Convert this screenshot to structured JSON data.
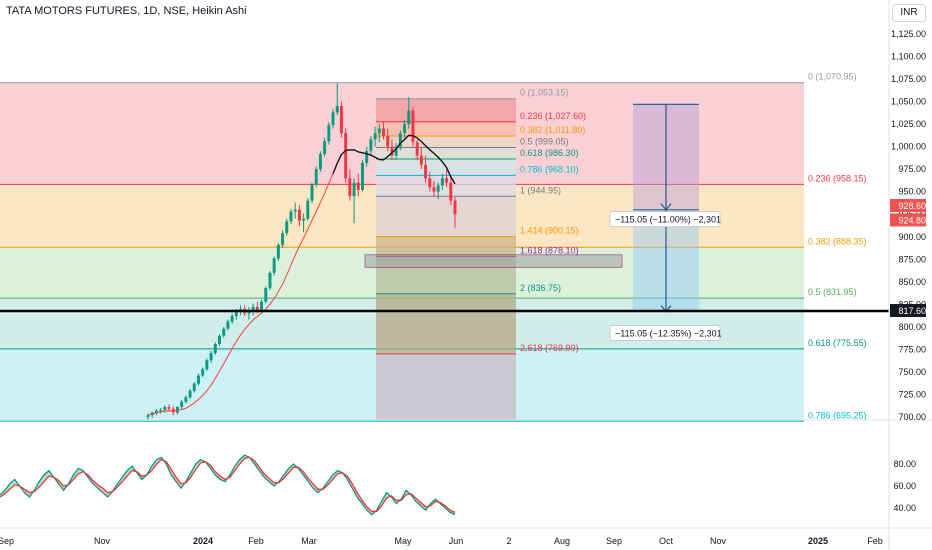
{
  "header": {
    "symbol_line": "TATA MOTORS FUTURES, 1D, NSE, Heikin Ashi",
    "currency": "INR"
  },
  "chart_data": [
    {
      "type": "candlestick",
      "title": "TATA MOTORS FUTURES, 1D, NSE, Heikin Ashi",
      "ylim": [
        695,
        1140
      ],
      "y_ticks": [
        "1,125.00",
        "1,100.00",
        "1,075.00",
        "1,050.00",
        "1,025.00",
        "1,000.00",
        "975.00",
        "950.00",
        "925.00",
        "900.00",
        "875.00",
        "850.00",
        "825.00",
        "800.00",
        "775.00",
        "750.00",
        "725.00",
        "700.00"
      ],
      "x_ticks": [
        "Sep",
        "Nov",
        "2024",
        "Feb",
        "Mar",
        "May",
        "Jun",
        "2",
        "Aug",
        "Sep",
        "Oct",
        "Nov",
        "2025",
        "Feb"
      ],
      "price_labels": [
        {
          "text": "928.60",
          "value": 928.6,
          "color": "#ef5350"
        },
        {
          "text": "924.80",
          "value": 924.8,
          "color": "#ef5350"
        },
        {
          "text": "817.60",
          "value": 817.6,
          "color": "#131722"
        }
      ],
      "candles": [
        {
          "o": 700,
          "h": 704,
          "l": 697,
          "c": 702
        },
        {
          "o": 702,
          "h": 706,
          "l": 699,
          "c": 705
        },
        {
          "o": 705,
          "h": 709,
          "l": 702,
          "c": 707
        },
        {
          "o": 707,
          "h": 710,
          "l": 704,
          "c": 708
        },
        {
          "o": 708,
          "h": 713,
          "l": 705,
          "c": 711
        },
        {
          "o": 711,
          "h": 714,
          "l": 706,
          "c": 709
        },
        {
          "o": 709,
          "h": 712,
          "l": 702,
          "c": 705
        },
        {
          "o": 705,
          "h": 712,
          "l": 703,
          "c": 711
        },
        {
          "o": 711,
          "h": 719,
          "l": 709,
          "c": 717
        },
        {
          "o": 717,
          "h": 724,
          "l": 715,
          "c": 722
        },
        {
          "o": 722,
          "h": 731,
          "l": 720,
          "c": 729
        },
        {
          "o": 729,
          "h": 739,
          "l": 727,
          "c": 737
        },
        {
          "o": 737,
          "h": 748,
          "l": 735,
          "c": 746
        },
        {
          "o": 746,
          "h": 755,
          "l": 744,
          "c": 753
        },
        {
          "o": 753,
          "h": 765,
          "l": 751,
          "c": 763
        },
        {
          "o": 763,
          "h": 773,
          "l": 760,
          "c": 771
        },
        {
          "o": 771,
          "h": 783,
          "l": 769,
          "c": 781
        },
        {
          "o": 781,
          "h": 792,
          "l": 779,
          "c": 790
        },
        {
          "o": 790,
          "h": 800,
          "l": 788,
          "c": 798
        },
        {
          "o": 798,
          "h": 808,
          "l": 796,
          "c": 806
        },
        {
          "o": 806,
          "h": 815,
          "l": 803,
          "c": 812
        },
        {
          "o": 812,
          "h": 820,
          "l": 808,
          "c": 817
        },
        {
          "o": 817,
          "h": 824,
          "l": 813,
          "c": 820
        },
        {
          "o": 820,
          "h": 824,
          "l": 812,
          "c": 815
        },
        {
          "o": 815,
          "h": 822,
          "l": 808,
          "c": 817
        },
        {
          "o": 817,
          "h": 826,
          "l": 813,
          "c": 822
        },
        {
          "o": 822,
          "h": 828,
          "l": 815,
          "c": 818
        },
        {
          "o": 818,
          "h": 830,
          "l": 816,
          "c": 828
        },
        {
          "o": 828,
          "h": 845,
          "l": 826,
          "c": 843
        },
        {
          "o": 843,
          "h": 862,
          "l": 841,
          "c": 860
        },
        {
          "o": 860,
          "h": 878,
          "l": 857,
          "c": 876
        },
        {
          "o": 876,
          "h": 893,
          "l": 873,
          "c": 891
        },
        {
          "o": 891,
          "h": 907,
          "l": 888,
          "c": 904
        },
        {
          "o": 904,
          "h": 920,
          "l": 901,
          "c": 917
        },
        {
          "o": 917,
          "h": 931,
          "l": 914,
          "c": 928
        },
        {
          "o": 928,
          "h": 938,
          "l": 920,
          "c": 930
        },
        {
          "o": 930,
          "h": 935,
          "l": 912,
          "c": 918
        },
        {
          "o": 918,
          "h": 926,
          "l": 905,
          "c": 920
        },
        {
          "o": 920,
          "h": 943,
          "l": 918,
          "c": 940
        },
        {
          "o": 940,
          "h": 960,
          "l": 937,
          "c": 958
        },
        {
          "o": 958,
          "h": 978,
          "l": 955,
          "c": 975
        },
        {
          "o": 975,
          "h": 995,
          "l": 972,
          "c": 992
        },
        {
          "o": 992,
          "h": 1010,
          "l": 989,
          "c": 1006
        },
        {
          "o": 1006,
          "h": 1027,
          "l": 1002,
          "c": 1024
        },
        {
          "o": 1024,
          "h": 1042,
          "l": 1020,
          "c": 1038
        },
        {
          "o": 1038,
          "h": 1070,
          "l": 1035,
          "c": 1045
        },
        {
          "o": 1045,
          "h": 1050,
          "l": 1010,
          "c": 1015
        },
        {
          "o": 1015,
          "h": 1020,
          "l": 960,
          "c": 965
        },
        {
          "o": 965,
          "h": 975,
          "l": 940,
          "c": 945
        },
        {
          "o": 945,
          "h": 965,
          "l": 915,
          "c": 960
        },
        {
          "o": 960,
          "h": 970,
          "l": 945,
          "c": 952
        },
        {
          "o": 952,
          "h": 985,
          "l": 950,
          "c": 982
        },
        {
          "o": 982,
          "h": 1000,
          "l": 978,
          "c": 995
        },
        {
          "o": 995,
          "h": 1012,
          "l": 990,
          "c": 1008
        },
        {
          "o": 1008,
          "h": 1022,
          "l": 1000,
          "c": 1015
        },
        {
          "o": 1015,
          "h": 1025,
          "l": 1005,
          "c": 1020
        },
        {
          "o": 1020,
          "h": 1028,
          "l": 1008,
          "c": 1012
        },
        {
          "o": 1012,
          "h": 1020,
          "l": 995,
          "c": 1000
        },
        {
          "o": 1000,
          "h": 1008,
          "l": 985,
          "c": 990
        },
        {
          "o": 990,
          "h": 1004,
          "l": 985,
          "c": 1000
        },
        {
          "o": 1000,
          "h": 1018,
          "l": 996,
          "c": 1015
        },
        {
          "o": 1015,
          "h": 1030,
          "l": 1010,
          "c": 1025
        },
        {
          "o": 1025,
          "h": 1055,
          "l": 1020,
          "c": 1040
        },
        {
          "o": 1040,
          "h": 1044,
          "l": 1000,
          "c": 1005
        },
        {
          "o": 1005,
          "h": 1008,
          "l": 985,
          "c": 990
        },
        {
          "o": 990,
          "h": 1000,
          "l": 975,
          "c": 980
        },
        {
          "o": 980,
          "h": 990,
          "l": 960,
          "c": 965
        },
        {
          "o": 965,
          "h": 972,
          "l": 950,
          "c": 955
        },
        {
          "o": 955,
          "h": 962,
          "l": 945,
          "c": 950
        },
        {
          "o": 950,
          "h": 960,
          "l": 942,
          "c": 957
        },
        {
          "o": 957,
          "h": 970,
          "l": 952,
          "c": 965
        },
        {
          "o": 965,
          "h": 975,
          "l": 955,
          "c": 960
        },
        {
          "o": 960,
          "h": 966,
          "l": 935,
          "c": 940
        },
        {
          "o": 940,
          "h": 944,
          "l": 910,
          "c": 925
        }
      ],
      "fib_retracement": [
        {
          "label": "0 (1,070.95)",
          "value": 1070.95,
          "color": "#9598a1"
        },
        {
          "label": "0.236 (958.15)",
          "value": 958.15,
          "color": "#f23645"
        },
        {
          "label": "0.382 (888.35)",
          "value": 888.35,
          "color": "#ff9800"
        },
        {
          "label": "0.5 (831.95)",
          "value": 831.95,
          "color": "#4caf50"
        },
        {
          "label": "0.618 (775.55)",
          "value": 775.55,
          "color": "#089981"
        },
        {
          "label": "0.786 (695.25)",
          "value": 695.25,
          "color": "#00bcd4"
        }
      ],
      "fib_extension": [
        {
          "label": "0 (1,053.15)",
          "value": 1053.15,
          "color": "#9598a1"
        },
        {
          "label": "0.236 (1,027.60)",
          "value": 1027.6,
          "color": "#f23645"
        },
        {
          "label": "0.382 (1,011.80)",
          "value": 1011.8,
          "color": "#ff9800"
        },
        {
          "label": "0.5 (999.05)",
          "value": 999.05,
          "color": "#787b86"
        },
        {
          "label": "0.618 (986.30)",
          "value": 986.3,
          "color": "#089981"
        },
        {
          "label": "0.786 (968.10)",
          "value": 968.1,
          "color": "#00bcd4"
        },
        {
          "label": "1 (944.95)",
          "value": 944.95,
          "color": "#787b86"
        },
        {
          "label": "1.414 (900.15)",
          "value": 900.15,
          "color": "#ff9800"
        },
        {
          "label": "1.618 (878.10)",
          "value": 878.1,
          "color": "#9c27b0"
        },
        {
          "label": "2 (836.75)",
          "value": 836.75,
          "color": "#089981"
        },
        {
          "label": "2.618 (769.90)",
          "value": 769.9,
          "color": "#f23645"
        }
      ],
      "measure": {
        "top": 1047,
        "mid": 930,
        "bottom": 817,
        "label_upper": "−115.05 (−11.00%) −2,301",
        "label_lower": "−115.05 (−12.35%) −2,301"
      },
      "horizontal_line": 817.6
    },
    {
      "type": "line",
      "title": "",
      "ylim": [
        28,
        98
      ],
      "y_ticks": [
        "80.00",
        "60.00",
        "40.00"
      ],
      "upper_band": 80,
      "lower_band": 50,
      "series": [
        {
          "values": [
            52,
            56,
            62,
            66,
            60,
            54,
            50,
            56,
            64,
            70,
            74,
            68,
            62,
            56,
            62,
            70,
            76,
            74,
            68,
            62,
            58,
            54,
            50,
            55,
            62,
            68,
            74,
            78,
            72,
            66,
            70,
            78,
            84,
            86,
            80,
            70,
            64,
            58,
            64,
            72,
            80,
            84,
            82,
            76,
            70,
            66,
            64,
            70,
            78,
            84,
            88,
            86,
            80,
            74,
            68,
            64,
            60,
            64,
            70,
            76,
            80,
            76,
            70,
            64,
            58,
            54,
            58,
            64,
            70,
            74,
            72,
            66,
            58,
            50,
            44,
            38,
            34,
            38,
            46,
            54,
            50,
            44,
            48,
            56,
            52,
            46,
            42,
            38,
            44,
            48,
            44,
            40,
            36,
            34
          ]
        },
        {
          "values": [
            50,
            53,
            57,
            61,
            60,
            57,
            54,
            55,
            59,
            64,
            69,
            68,
            65,
            60,
            61,
            66,
            71,
            73,
            70,
            65,
            61,
            58,
            54,
            55,
            59,
            64,
            69,
            74,
            73,
            69,
            70,
            74,
            80,
            84,
            82,
            75,
            68,
            62,
            63,
            68,
            75,
            81,
            82,
            79,
            73,
            69,
            66,
            68,
            74,
            80,
            85,
            86,
            83,
            77,
            71,
            67,
            63,
            63,
            67,
            72,
            77,
            77,
            73,
            67,
            62,
            57,
            57,
            61,
            66,
            71,
            72,
            69,
            62,
            54,
            47,
            41,
            37,
            37,
            42,
            49,
            51,
            47,
            47,
            52,
            53,
            49,
            45,
            41,
            42,
            46,
            45,
            42,
            38,
            36
          ]
        }
      ]
    }
  ]
}
